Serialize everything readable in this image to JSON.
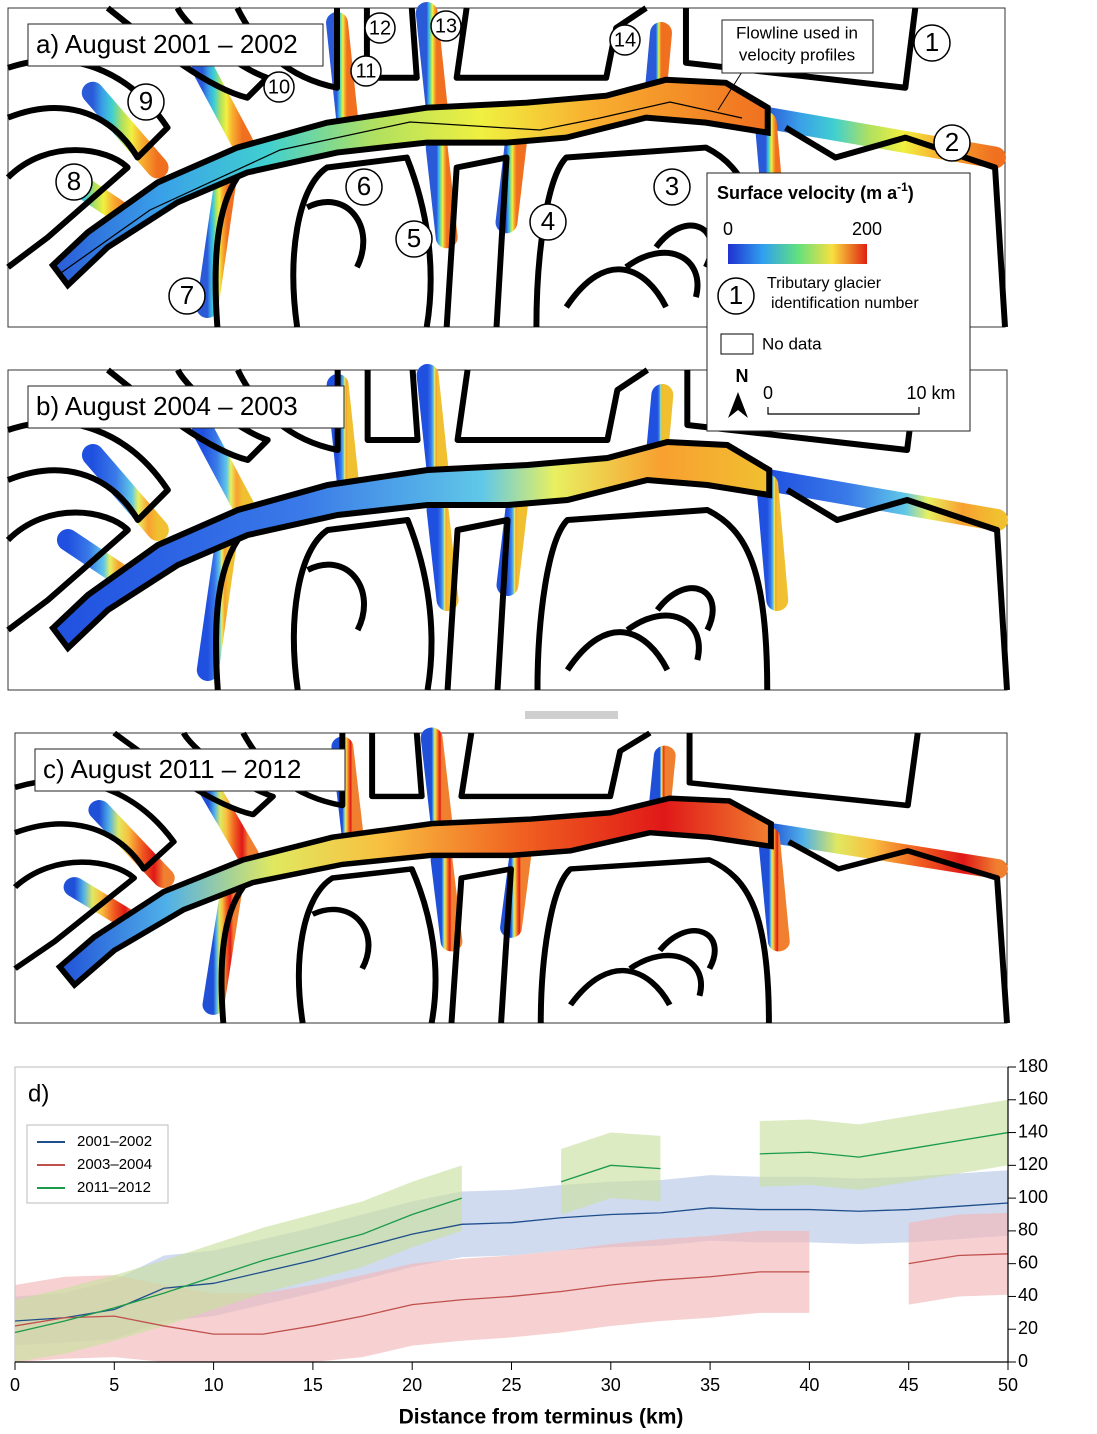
{
  "maps": {
    "panels": [
      "a) August 2001 – 2002",
      "b) August 2004 – 2003",
      "c) August 2011 – 2012"
    ],
    "tributaries": [
      "1",
      "2",
      "3",
      "4",
      "5",
      "6",
      "7",
      "8",
      "9",
      "10",
      "11",
      "12",
      "13",
      "14"
    ],
    "flowline_note": [
      "Flowline used in",
      "velocity profiles"
    ],
    "legend": {
      "title": [
        "Surface velocity (m a",
        "-1",
        ")"
      ],
      "colorbar_min": "0",
      "colorbar_max": "200",
      "tributary_symbol": "1",
      "tributary_text": [
        "Tributary glacier",
        "identification number"
      ],
      "no_data": "No data",
      "north": "N",
      "scale_start": "0",
      "scale_end": "10 km"
    }
  },
  "chart_data": {
    "type": "line",
    "title": "d)",
    "x_label": "Distance from terminus (km)",
    "x": [
      0,
      2.5,
      5,
      7.5,
      10,
      12.5,
      15,
      17.5,
      20,
      22.5,
      25,
      27.5,
      30,
      32.5,
      35,
      37.5,
      40,
      42.5,
      45,
      47.5,
      50
    ],
    "xlim": [
      0,
      50
    ],
    "xticks": [
      0,
      5,
      10,
      15,
      20,
      25,
      30,
      35,
      40,
      45,
      50
    ],
    "ylim": [
      0,
      180
    ],
    "yticks": [
      0,
      20,
      40,
      60,
      80,
      100,
      120,
      140,
      160,
      180
    ],
    "legend_position": "upper left",
    "series": [
      {
        "name": "2001–2002",
        "color": "#1f4e8c",
        "band_color": "#b7c7e6",
        "values": [
          25,
          27,
          32,
          45,
          48,
          55,
          62,
          70,
          78,
          84,
          85,
          88,
          90,
          91,
          94,
          93,
          93,
          92,
          93,
          95,
          97
        ],
        "lower": [
          10,
          12,
          14,
          25,
          28,
          35,
          42,
          50,
          58,
          64,
          65,
          68,
          70,
          71,
          74,
          73,
          73,
          72,
          73,
          75,
          77
        ],
        "upper": [
          40,
          42,
          50,
          65,
          68,
          75,
          82,
          90,
          98,
          104,
          105,
          108,
          110,
          111,
          114,
          113,
          113,
          112,
          113,
          115,
          117
        ]
      },
      {
        "name": "2003–2004",
        "color": "#c0504d",
        "band_color": "#f3b9b9",
        "values": [
          22,
          27,
          28,
          22,
          17,
          17,
          22,
          28,
          35,
          38,
          40,
          43,
          47,
          50,
          52,
          55,
          55,
          null,
          60,
          65,
          66
        ],
        "lower": [
          0,
          2,
          3,
          0,
          0,
          0,
          0,
          3,
          10,
          13,
          15,
          18,
          22,
          25,
          27,
          30,
          30,
          null,
          35,
          40,
          41
        ],
        "upper": [
          47,
          52,
          53,
          47,
          42,
          42,
          47,
          53,
          60,
          63,
          65,
          68,
          72,
          75,
          77,
          80,
          80,
          null,
          85,
          90,
          91
        ]
      },
      {
        "name": "2011–2012",
        "color": "#1a9a4a",
        "band_color": "#c9e0a0",
        "values": [
          18,
          25,
          33,
          42,
          52,
          62,
          70,
          78,
          90,
          100,
          null,
          110,
          120,
          118,
          null,
          127,
          128,
          125,
          130,
          135,
          140
        ],
        "lower": [
          0,
          5,
          13,
          22,
          32,
          42,
          50,
          58,
          70,
          80,
          null,
          90,
          100,
          98,
          null,
          107,
          108,
          105,
          110,
          115,
          120
        ],
        "upper": [
          38,
          45,
          53,
          62,
          72,
          82,
          90,
          98,
          110,
          120,
          null,
          130,
          140,
          138,
          null,
          147,
          148,
          145,
          150,
          155,
          160
        ]
      }
    ]
  }
}
